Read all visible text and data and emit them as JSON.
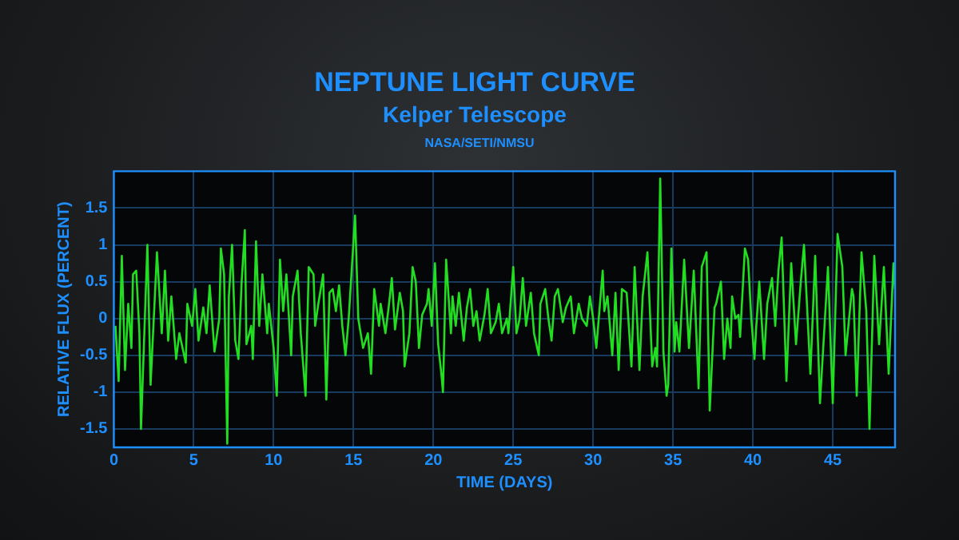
{
  "chart_data": {
    "type": "line",
    "title": "NEPTUNE LIGHT CURVE",
    "subtitle": "Kelper Telescope",
    "annotations": [
      "NASA/SETI/NMSU"
    ],
    "xlabel": "TIME (DAYS)",
    "ylabel": "RELATIVE FLUX (PERCENT)",
    "xlim": [
      0,
      48.9
    ],
    "ylim": [
      -1.75,
      2
    ],
    "xticks": [
      0,
      5,
      10,
      15,
      20,
      25,
      30,
      35,
      40,
      45
    ],
    "yticks": [
      -1.5,
      -1,
      -0.5,
      0,
      0.5,
      1,
      1.5
    ],
    "grid": true,
    "marker": "none",
    "line_style": "solid",
    "series": [
      {
        "color": "#22dd22",
        "x": [
          0.1,
          0.3,
          0.5,
          0.7,
          0.9,
          1.1,
          1.2,
          1.4,
          1.6,
          1.7,
          2.1,
          2.3,
          2.7,
          3.0,
          3.2,
          3.4,
          3.6,
          3.9,
          4.1,
          4.5,
          4.6,
          4.9,
          5.1,
          5.3,
          5.6,
          5.8,
          6.0,
          6.3,
          6.6,
          6.7,
          6.9,
          7.1,
          7.2,
          7.4,
          7.6,
          7.8,
          8.0,
          8.2,
          8.3,
          8.6,
          8.7,
          8.9,
          9.1,
          9.3,
          9.6,
          9.7,
          10.0,
          10.2,
          10.4,
          10.6,
          10.8,
          11.1,
          11.2,
          11.5,
          11.7,
          12.0,
          12.2,
          12.5,
          12.6,
          12.8,
          13.1,
          13.3,
          13.5,
          13.7,
          13.9,
          14.1,
          14.3,
          14.5,
          14.7,
          15.1,
          15.3,
          15.6,
          15.9,
          16.1,
          16.3,
          16.6,
          16.7,
          17.0,
          17.2,
          17.4,
          17.6,
          17.9,
          18.1,
          18.2,
          18.5,
          18.7,
          18.9,
          19.1,
          19.3,
          19.6,
          19.7,
          19.9,
          20.1,
          20.3,
          20.5,
          20.6,
          20.8,
          21.1,
          21.2,
          21.4,
          21.6,
          21.9,
          22.1,
          22.3,
          22.5,
          22.7,
          22.9,
          23.2,
          23.4,
          23.6,
          23.9,
          24.1,
          24.3,
          24.6,
          24.7,
          25.0,
          25.2,
          25.4,
          25.6,
          25.8,
          26.1,
          26.3,
          26.6,
          26.7,
          27.0,
          27.2,
          27.4,
          27.6,
          27.8,
          28.1,
          28.3,
          28.6,
          28.8,
          29.1,
          29.3,
          29.6,
          29.8,
          30.0,
          30.2,
          30.6,
          30.7,
          30.9,
          31.2,
          31.4,
          31.6,
          31.8,
          32.1,
          32.4,
          32.6,
          32.9,
          33.1,
          33.4,
          33.7,
          33.9,
          34.0,
          34.2,
          34.4,
          34.6,
          34.7,
          34.9,
          35.1,
          35.2,
          35.4,
          35.7,
          36.0,
          36.3,
          36.6,
          36.8,
          37.1,
          37.3,
          37.6,
          37.7,
          38.0,
          38.2,
          38.4,
          38.6,
          38.7,
          38.9,
          39.1,
          39.2,
          39.5,
          39.7,
          39.9,
          40.1,
          40.2,
          40.4,
          40.7,
          40.9,
          41.2,
          41.4,
          41.6,
          41.8,
          42.1,
          42.4,
          42.7,
          43.0,
          43.2,
          43.6,
          43.9,
          44.2,
          44.7,
          45.0,
          45.3,
          45.6,
          45.8,
          46.2,
          46.3,
          46.5,
          46.8,
          47.1,
          47.3,
          47.6,
          47.9,
          48.2,
          48.5,
          48.8,
          48.9
        ],
        "values": [
          -0.1,
          -0.85,
          0.85,
          -0.7,
          0.2,
          -0.4,
          0.6,
          0.65,
          -0.2,
          -1.5,
          1.0,
          -0.9,
          0.9,
          -0.2,
          0.65,
          -0.3,
          0.3,
          -0.55,
          -0.2,
          -0.6,
          0.2,
          -0.1,
          0.4,
          -0.3,
          0.15,
          -0.2,
          0.45,
          -0.45,
          0,
          0.95,
          0.6,
          -1.7,
          0.3,
          1.0,
          -0.3,
          -0.55,
          0.5,
          1.2,
          -0.35,
          -0.1,
          -0.55,
          1.05,
          -0.1,
          0.6,
          -0.2,
          0.2,
          -0.4,
          -1.05,
          0.8,
          0.1,
          0.6,
          -0.5,
          0.3,
          0.65,
          -0.2,
          -1.05,
          0.7,
          0.6,
          -0.1,
          0.2,
          0.6,
          -1.1,
          0.35,
          0.4,
          0.1,
          0.45,
          -0.1,
          -0.5,
          0,
          1.4,
          0,
          -0.4,
          -0.2,
          -0.75,
          0.4,
          -0.1,
          0.2,
          -0.2,
          0.15,
          0.55,
          -0.15,
          0.35,
          0.1,
          -0.65,
          -0.2,
          0.7,
          0.5,
          -0.4,
          0.05,
          0.2,
          0.4,
          -0.1,
          0.75,
          -0.35,
          -0.75,
          -1.0,
          0.8,
          -0.2,
          0.3,
          -0.1,
          0.35,
          -0.3,
          0.15,
          0.4,
          -0.1,
          0.1,
          -0.3,
          0.05,
          0.4,
          -0.2,
          -0.05,
          0.2,
          -0.2,
          0,
          -0.2,
          0.7,
          -0.2,
          0,
          0.55,
          -0.1,
          0.35,
          -0.2,
          -0.5,
          0.2,
          0.4,
          0,
          -0.3,
          0.3,
          0.4,
          -0.05,
          0.15,
          0.3,
          -0.2,
          0.2,
          0,
          -0.1,
          0.3,
          0,
          -0.4,
          0.65,
          0.1,
          0.3,
          -0.5,
          0.35,
          -0.7,
          0.4,
          0.35,
          -0.65,
          0.7,
          -0.7,
          0.3,
          0.9,
          -0.65,
          -0.4,
          -0.65,
          1.9,
          -0.45,
          -1.05,
          -0.9,
          0.95,
          -0.45,
          -0.05,
          -0.45,
          0.8,
          -0.4,
          0.65,
          -0.95,
          0.7,
          0.9,
          -1.25,
          0.15,
          0.2,
          0.5,
          -0.55,
          0,
          -0.4,
          0.3,
          0,
          0.05,
          -0.25,
          0.95,
          0.8,
          0,
          -0.55,
          -0.15,
          0.5,
          -0.55,
          0.2,
          0.55,
          -0.1,
          0.65,
          1.1,
          -0.85,
          0.75,
          -0.35,
          0.5,
          1.0,
          -0.75,
          0.85,
          -1.15,
          0.7,
          -1.15,
          1.15,
          0.7,
          -0.5,
          0.4,
          0.3,
          -1.05,
          0.9,
          0.1,
          -1.5,
          0.85,
          -0.35,
          0.7,
          -0.75,
          0.75,
          0.4
        ]
      }
    ]
  }
}
